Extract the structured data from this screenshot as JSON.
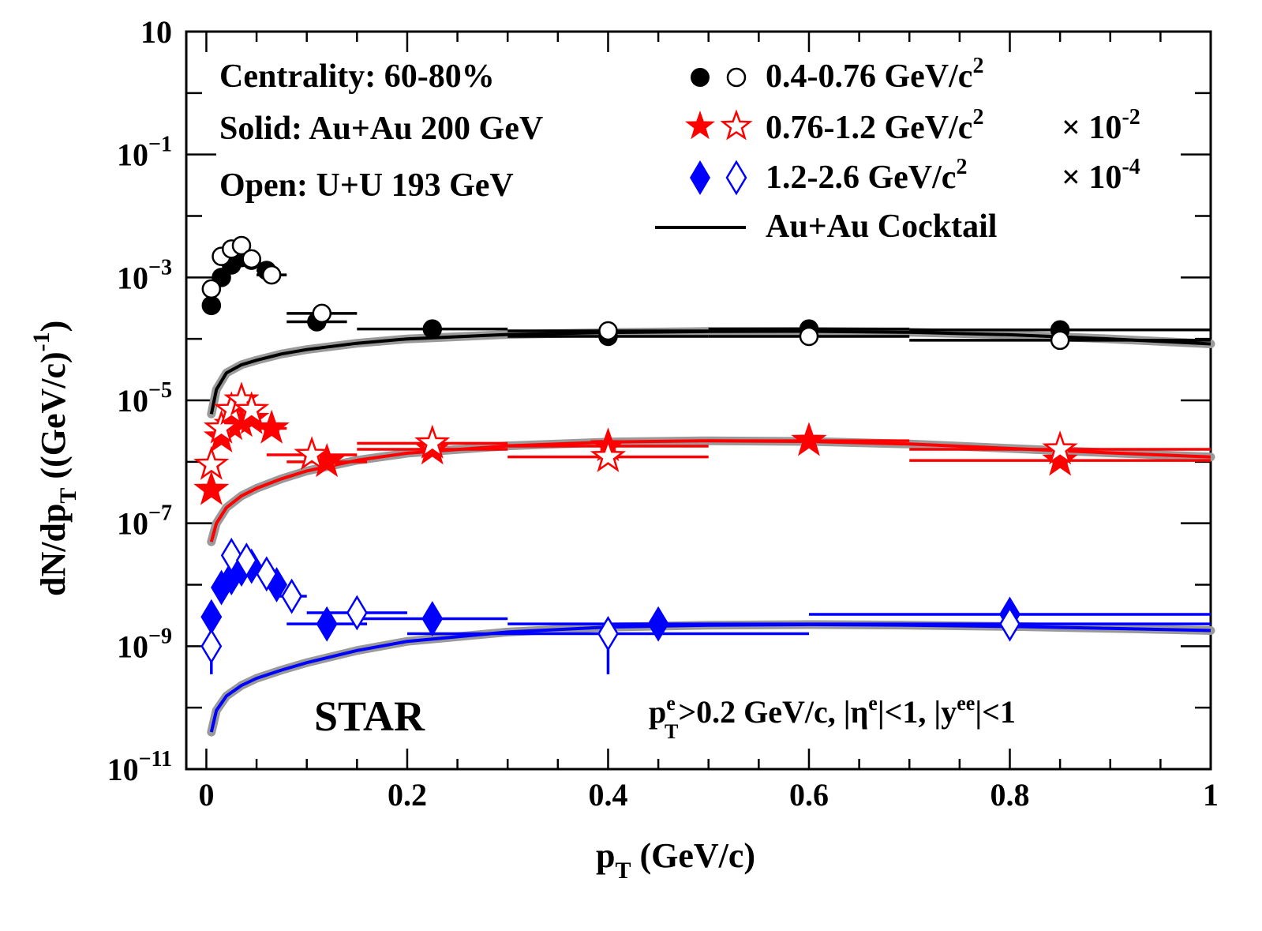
{
  "chart_data": {
    "type": "scatter",
    "yscale": "log",
    "xlabel": "p",
    "xlabel_sub": "T",
    "xlabel_rest": " (GeV/c)",
    "ylabel": "dN/dp",
    "ylabel_sub": "T",
    "ylabel_rest": " ((GeV/c)",
    "ylabel_sup": "-1",
    "ylabel_close": ")",
    "xlim": [
      -0.02,
      1.0
    ],
    "ylim": [
      1e-11,
      10
    ],
    "x_ticks": [
      {
        "value": 0,
        "label": "0"
      },
      {
        "value": 0.2,
        "label": "0.2"
      },
      {
        "value": 0.4,
        "label": "0.4"
      },
      {
        "value": 0.6,
        "label": "0.6"
      },
      {
        "value": 0.8,
        "label": "0.8"
      },
      {
        "value": 1.0,
        "label": "1"
      }
    ],
    "y_ticks": [
      {
        "value": 10,
        "base": "10",
        "exp": ""
      },
      {
        "value": 0.1,
        "base": "10",
        "exp": "−1"
      },
      {
        "value": 0.001,
        "base": "10",
        "exp": "−3"
      },
      {
        "value": 1e-05,
        "base": "10",
        "exp": "−5"
      },
      {
        "value": 1e-07,
        "base": "10",
        "exp": "−7"
      },
      {
        "value": 1e-09,
        "base": "10",
        "exp": "−9"
      },
      {
        "value": 1e-11,
        "base": "10",
        "exp": "−11"
      }
    ],
    "annotations": {
      "centrality": "Centrality: 60-80%",
      "solid": "Solid: Au+Au 200 GeV",
      "open": "Open: U+U 193 GeV",
      "experiment": "STAR",
      "cuts": {
        "p": "p",
        "p_sup": "e",
        "p_sub": "T",
        "p_rest": ">0.2 GeV/c, |η",
        "eta_sup": "e",
        "eta_rest": "|<1, |y",
        "y_sup": "ee",
        "y_rest": "|<1"
      }
    },
    "legend": [
      {
        "name": "low",
        "label": "0.4-0.76 GeV/c",
        "sup": "2",
        "scale_label": "",
        "scale_exp": "",
        "marker": "circle",
        "color": "#000000"
      },
      {
        "name": "mid",
        "label": "0.76-1.2  GeV/c",
        "sup": "2",
        "scale_label": "× 10",
        "scale_exp": "-2",
        "marker": "star",
        "color": "#ff0000"
      },
      {
        "name": "high",
        "label": "1.2-2.6  GeV/c",
        "sup": "2",
        "scale_label": "× 10",
        "scale_exp": "-4",
        "marker": "diamond",
        "color": "#0000ff"
      },
      {
        "name": "cocktail",
        "label": "Au+Au Cocktail",
        "sup": "",
        "scale_label": "",
        "scale_exp": "",
        "marker": "line",
        "color": "#000000"
      }
    ],
    "series": [
      {
        "name": "0.4-0.76 Au+Au 200 GeV",
        "marker": "circle",
        "filled": true,
        "color": "#000000",
        "points": [
          {
            "x": 0.005,
            "y": 0.00035,
            "xerr": 0.005,
            "ylo": 0.00025,
            "yhi": 0.00045
          },
          {
            "x": 0.015,
            "y": 0.001,
            "xerr": 0.005
          },
          {
            "x": 0.025,
            "y": 0.0016,
            "xerr": 0.005
          },
          {
            "x": 0.035,
            "y": 0.0021,
            "xerr": 0.005
          },
          {
            "x": 0.045,
            "y": 0.0019,
            "xerr": 0.005
          },
          {
            "x": 0.06,
            "y": 0.0013,
            "xerr": 0.01
          },
          {
            "x": 0.11,
            "y": 0.00019,
            "xerr": 0.03
          },
          {
            "x": 0.225,
            "y": 0.000145,
            "xerr": 0.075,
            "ylo": 0.0001,
            "yhi": 0.00019
          },
          {
            "x": 0.4,
            "y": 0.00011,
            "xerr": 0.1,
            "ylo": 8e-05,
            "yhi": 0.00014
          },
          {
            "x": 0.6,
            "y": 0.000145,
            "xerr": 0.1,
            "ylo": 8.5e-05,
            "yhi": 0.0002
          },
          {
            "x": 0.85,
            "y": 0.00014,
            "xerr": 0.15
          }
        ]
      },
      {
        "name": "0.4-0.76 U+U 193 GeV",
        "marker": "circle",
        "filled": false,
        "color": "#000000",
        "points": [
          {
            "x": 0.005,
            "y": 0.00065,
            "xerr": 0.005
          },
          {
            "x": 0.015,
            "y": 0.0022,
            "xerr": 0.005
          },
          {
            "x": 0.025,
            "y": 0.0029,
            "xerr": 0.005
          },
          {
            "x": 0.035,
            "y": 0.0033,
            "xerr": 0.005
          },
          {
            "x": 0.045,
            "y": 0.002,
            "xerr": 0.005
          },
          {
            "x": 0.065,
            "y": 0.0011,
            "xerr": 0.015
          },
          {
            "x": 0.115,
            "y": 0.00026,
            "xerr": 0.035
          },
          {
            "x": 0.4,
            "y": 0.000135,
            "xerr": 0.1
          },
          {
            "x": 0.6,
            "y": 0.00011,
            "xerr": 0.1
          },
          {
            "x": 0.85,
            "y": 9.5e-05,
            "xerr": 0.15
          }
        ]
      },
      {
        "name": "0.76-1.2 Au+Au 200 GeV",
        "marker": "star",
        "filled": true,
        "color": "#ff0000",
        "points": [
          {
            "x": 0.005,
            "y": 3.5e-07,
            "xerr": 0.005
          },
          {
            "x": 0.015,
            "y": 2.5e-06,
            "xerr": 0.005
          },
          {
            "x": 0.025,
            "y": 4e-06,
            "xerr": 0.005
          },
          {
            "x": 0.035,
            "y": 4.5e-06,
            "xerr": 0.005
          },
          {
            "x": 0.045,
            "y": 5e-06,
            "xerr": 0.005
          },
          {
            "x": 0.065,
            "y": 3.5e-06,
            "xerr": 0.015
          },
          {
            "x": 0.12,
            "y": 1e-06,
            "xerr": 0.04
          },
          {
            "x": 0.225,
            "y": 1.6e-06,
            "xerr": 0.075
          },
          {
            "x": 0.4,
            "y": 1.8e-06,
            "xerr": 0.1
          },
          {
            "x": 0.6,
            "y": 2.2e-06,
            "xerr": 0.1
          },
          {
            "x": 0.85,
            "y": 1.05e-06,
            "xerr": 0.15
          }
        ]
      },
      {
        "name": "0.76-1.2 U+U 193 GeV",
        "marker": "star",
        "filled": false,
        "color": "#ff0000",
        "points": [
          {
            "x": 0.005,
            "y": 9e-07,
            "xerr": 0.005
          },
          {
            "x": 0.015,
            "y": 3.5e-06,
            "xerr": 0.005
          },
          {
            "x": 0.025,
            "y": 7e-06,
            "xerr": 0.005
          },
          {
            "x": 0.035,
            "y": 1e-05,
            "xerr": 0.005
          },
          {
            "x": 0.045,
            "y": 7e-06,
            "xerr": 0.005
          },
          {
            "x": 0.105,
            "y": 1.3e-06,
            "xerr": 0.045
          },
          {
            "x": 0.225,
            "y": 2e-06,
            "xerr": 0.075
          },
          {
            "x": 0.4,
            "y": 1.2e-06,
            "xerr": 0.1
          },
          {
            "x": 0.85,
            "y": 1.6e-06,
            "xerr": 0.15
          }
        ]
      },
      {
        "name": "1.2-2.6 Au+Au 200 GeV",
        "marker": "diamond",
        "filled": true,
        "color": "#0000ff",
        "points": [
          {
            "x": 0.005,
            "y": 3e-09,
            "xerr": 0.005
          },
          {
            "x": 0.015,
            "y": 9e-09,
            "xerr": 0.005
          },
          {
            "x": 0.025,
            "y": 1.3e-08,
            "xerr": 0.005
          },
          {
            "x": 0.035,
            "y": 1.8e-08,
            "xerr": 0.005
          },
          {
            "x": 0.045,
            "y": 2e-08,
            "xerr": 0.005
          },
          {
            "x": 0.07,
            "y": 1e-08,
            "xerr": 0.01
          },
          {
            "x": 0.12,
            "y": 2.3e-09,
            "xerr": 0.04
          },
          {
            "x": 0.225,
            "y": 2.8e-09,
            "xerr": 0.075
          },
          {
            "x": 0.45,
            "y": 2.3e-09,
            "xerr": 0.15
          },
          {
            "x": 0.8,
            "y": 3.3e-09,
            "xerr": 0.2
          }
        ]
      },
      {
        "name": "1.2-2.6 U+U 193 GeV",
        "marker": "diamond",
        "filled": false,
        "color": "#0000ff",
        "points": [
          {
            "x": 0.005,
            "y": 1e-09,
            "xerr": 0.005,
            "ylo": 3.5e-10,
            "yhi": 2e-09
          },
          {
            "x": 0.025,
            "y": 3e-08,
            "xerr": 0.005
          },
          {
            "x": 0.04,
            "y": 2.5e-08,
            "xerr": 0.005
          },
          {
            "x": 0.06,
            "y": 1.5e-08,
            "xerr": 0.01
          },
          {
            "x": 0.085,
            "y": 6.5e-09,
            "xerr": 0.015
          },
          {
            "x": 0.15,
            "y": 3.5e-09,
            "xerr": 0.05
          },
          {
            "x": 0.4,
            "y": 1.6e-09,
            "xerr": 0.2,
            "ylo": 3.5e-10,
            "yhi": 2.5e-09
          },
          {
            "x": 0.8,
            "y": 2.3e-09,
            "xerr": 0.2
          }
        ]
      }
    ],
    "cocktails": [
      {
        "name": "cocktail-low",
        "color": "#000000",
        "x": [
          0.005,
          0.01,
          0.02,
          0.035,
          0.05,
          0.075,
          0.1,
          0.15,
          0.2,
          0.3,
          0.4,
          0.5,
          0.6,
          0.7,
          0.8,
          0.9,
          1.0
        ],
        "y": [
          6e-06,
          1.5e-05,
          2.8e-05,
          3.8e-05,
          4.5e-05,
          5.7e-05,
          6.7e-05,
          8.5e-05,
          0.0001,
          0.000118,
          0.000127,
          0.000132,
          0.000133,
          0.000128,
          0.000117,
          0.0001,
          8.3e-05
        ]
      },
      {
        "name": "cocktail-mid",
        "color": "#ff0000",
        "x": [
          0.005,
          0.01,
          0.02,
          0.035,
          0.05,
          0.075,
          0.1,
          0.15,
          0.2,
          0.3,
          0.4,
          0.5,
          0.6,
          0.7,
          0.8,
          0.9,
          1.0
        ],
        "y": [
          5e-08,
          1e-07,
          1.8e-07,
          2.8e-07,
          3.7e-07,
          5.3e-07,
          7.1e-07,
          1.06e-06,
          1.38e-06,
          1.82e-06,
          2.1e-06,
          2.2e-06,
          2.15e-06,
          1.95e-06,
          1.65e-06,
          1.4e-06,
          1.2e-06
        ]
      },
      {
        "name": "cocktail-high",
        "color": "#0000ff",
        "x": [
          0.005,
          0.01,
          0.02,
          0.035,
          0.05,
          0.075,
          0.1,
          0.15,
          0.2,
          0.3,
          0.4,
          0.5,
          0.6,
          0.7,
          0.8,
          0.9,
          1.0
        ],
        "y": [
          4e-11,
          9e-11,
          1.55e-10,
          2.3e-10,
          3e-10,
          4.1e-10,
          5.4e-10,
          8.5e-10,
          1.2e-09,
          1.7e-09,
          2.05e-09,
          2.2e-09,
          2.25e-09,
          2.2e-09,
          2.1e-09,
          1.95e-09,
          1.8e-09
        ]
      }
    ]
  }
}
